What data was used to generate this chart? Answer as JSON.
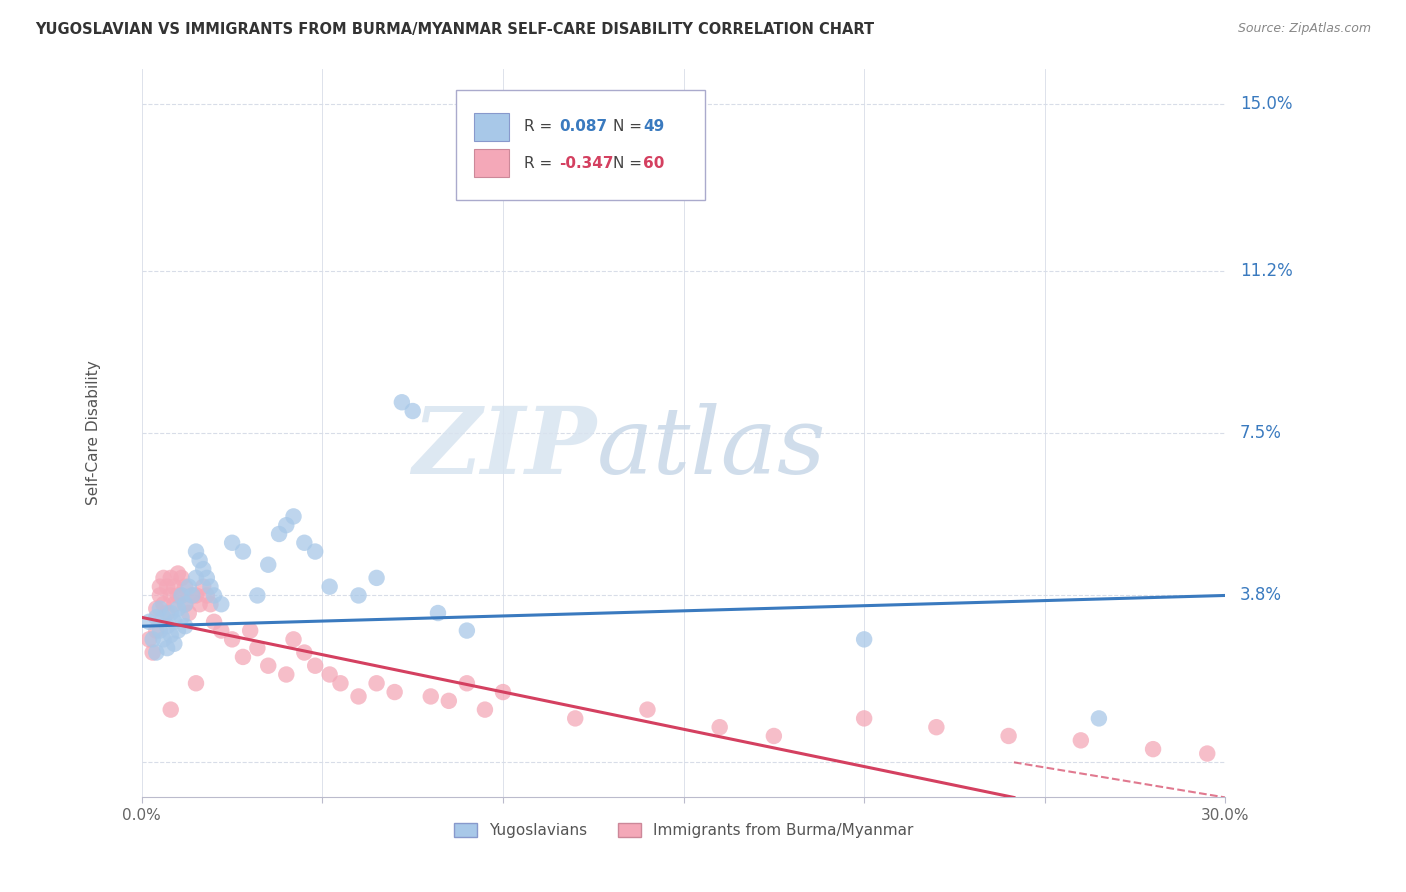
{
  "title": "YUGOSLAVIAN VS IMMIGRANTS FROM BURMA/MYANMAR SELF-CARE DISABILITY CORRELATION CHART",
  "source": "Source: ZipAtlas.com",
  "ylabel": "Self-Care Disability",
  "xlim": [
    0.0,
    0.3
  ],
  "ylim": [
    -0.008,
    0.158
  ],
  "xticks": [
    0.0,
    0.05,
    0.1,
    0.15,
    0.2,
    0.25,
    0.3
  ],
  "xticklabels": [
    "0.0%",
    "",
    "",
    "",
    "",
    "",
    "30.0%"
  ],
  "ytick_values": [
    0.0,
    0.038,
    0.075,
    0.112,
    0.15
  ],
  "ytick_labels": [
    "",
    "3.8%",
    "7.5%",
    "11.2%",
    "15.0%"
  ],
  "grid_color": "#d8dde8",
  "background_color": "#ffffff",
  "blue_color": "#a8c8e8",
  "pink_color": "#f4a8b8",
  "blue_line_color": "#3a7abf",
  "pink_line_color": "#d44060",
  "legend_R1": "0.087",
  "legend_N1": "49",
  "legend_R2": "-0.347",
  "legend_N2": "60",
  "watermark_zip": "ZIP",
  "watermark_atlas": "atlas",
  "legend1_label": "Yugoslavians",
  "legend2_label": "Immigrants from Burma/Myanmar",
  "blue_scatter_x": [
    0.002,
    0.003,
    0.004,
    0.004,
    0.005,
    0.005,
    0.006,
    0.006,
    0.007,
    0.007,
    0.008,
    0.008,
    0.009,
    0.009,
    0.01,
    0.01,
    0.011,
    0.011,
    0.012,
    0.012,
    0.013,
    0.014,
    0.015,
    0.015,
    0.016,
    0.017,
    0.018,
    0.019,
    0.02,
    0.022,
    0.025,
    0.028,
    0.032,
    0.035,
    0.038,
    0.04,
    0.042,
    0.045,
    0.048,
    0.052,
    0.06,
    0.065,
    0.072,
    0.075,
    0.082,
    0.09,
    0.125,
    0.2,
    0.265
  ],
  "blue_scatter_y": [
    0.032,
    0.028,
    0.025,
    0.033,
    0.03,
    0.035,
    0.028,
    0.033,
    0.026,
    0.031,
    0.029,
    0.034,
    0.027,
    0.032,
    0.03,
    0.035,
    0.033,
    0.038,
    0.031,
    0.036,
    0.04,
    0.038,
    0.042,
    0.048,
    0.046,
    0.044,
    0.042,
    0.04,
    0.038,
    0.036,
    0.05,
    0.048,
    0.038,
    0.045,
    0.052,
    0.054,
    0.056,
    0.05,
    0.048,
    0.04,
    0.038,
    0.042,
    0.082,
    0.08,
    0.034,
    0.03,
    0.13,
    0.028,
    0.01
  ],
  "pink_scatter_x": [
    0.002,
    0.003,
    0.004,
    0.004,
    0.005,
    0.005,
    0.006,
    0.006,
    0.007,
    0.007,
    0.008,
    0.008,
    0.009,
    0.009,
    0.01,
    0.01,
    0.011,
    0.011,
    0.012,
    0.012,
    0.013,
    0.014,
    0.015,
    0.016,
    0.017,
    0.018,
    0.019,
    0.02,
    0.022,
    0.025,
    0.028,
    0.03,
    0.032,
    0.035,
    0.04,
    0.042,
    0.045,
    0.048,
    0.052,
    0.055,
    0.06,
    0.065,
    0.07,
    0.08,
    0.085,
    0.09,
    0.095,
    0.1,
    0.12,
    0.14,
    0.16,
    0.175,
    0.2,
    0.22,
    0.24,
    0.26,
    0.28,
    0.295,
    0.008,
    0.015
  ],
  "pink_scatter_y": [
    0.028,
    0.025,
    0.035,
    0.03,
    0.04,
    0.038,
    0.042,
    0.036,
    0.034,
    0.04,
    0.038,
    0.042,
    0.036,
    0.04,
    0.038,
    0.043,
    0.042,
    0.038,
    0.04,
    0.036,
    0.034,
    0.038,
    0.038,
    0.036,
    0.04,
    0.038,
    0.036,
    0.032,
    0.03,
    0.028,
    0.024,
    0.03,
    0.026,
    0.022,
    0.02,
    0.028,
    0.025,
    0.022,
    0.02,
    0.018,
    0.015,
    0.018,
    0.016,
    0.015,
    0.014,
    0.018,
    0.012,
    0.016,
    0.01,
    0.012,
    0.008,
    0.006,
    0.01,
    0.008,
    0.006,
    0.005,
    0.003,
    0.002,
    0.012,
    0.018
  ],
  "blue_line_y0": 0.031,
  "blue_line_y1": 0.038,
  "pink_line_y0": 0.033,
  "pink_line_y1": -0.008
}
